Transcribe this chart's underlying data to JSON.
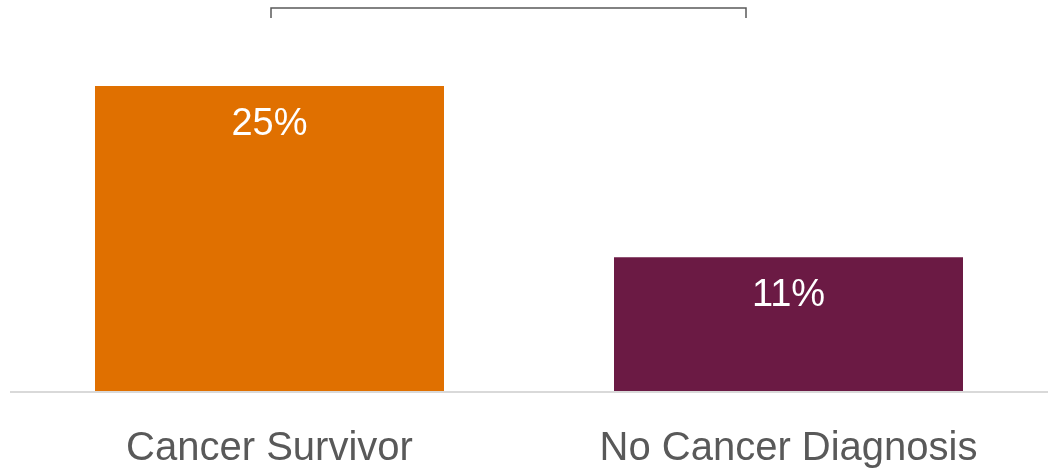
{
  "chart_data": {
    "type": "bar",
    "categories": [
      "Cancer Survivor",
      "No Cancer Diagnosis"
    ],
    "values": [
      25,
      11
    ],
    "colors": [
      "#e07000",
      "#6b1a44"
    ],
    "value_labels": [
      "25%",
      "11%"
    ]
  }
}
